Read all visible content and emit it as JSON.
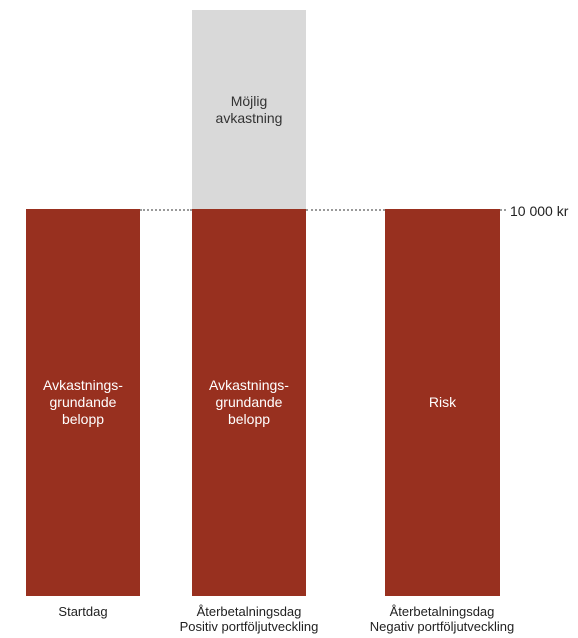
{
  "colors": {
    "principal": "#98301f",
    "possible_return": "#d9d9d9",
    "reference_line": "#9a9a9a"
  },
  "reference_line": {
    "value_label": "10 000 kr",
    "style": "dotted"
  },
  "columns": [
    {
      "label": "Startdag",
      "segments": [
        {
          "text": "Avkastnings-\ngrundande\nbelopp"
        }
      ]
    },
    {
      "label": "Återbetalningsdag\nPositiv portföljutveckling",
      "segments": [
        {
          "text": "Möjlig\navkastning"
        },
        {
          "text": "Avkastnings-\ngrundande\nbelopp"
        }
      ]
    },
    {
      "label": "Återbetalningsdag\nNegativ portföljutveckling",
      "segments": [
        {
          "text": "Risk"
        }
      ]
    }
  ]
}
